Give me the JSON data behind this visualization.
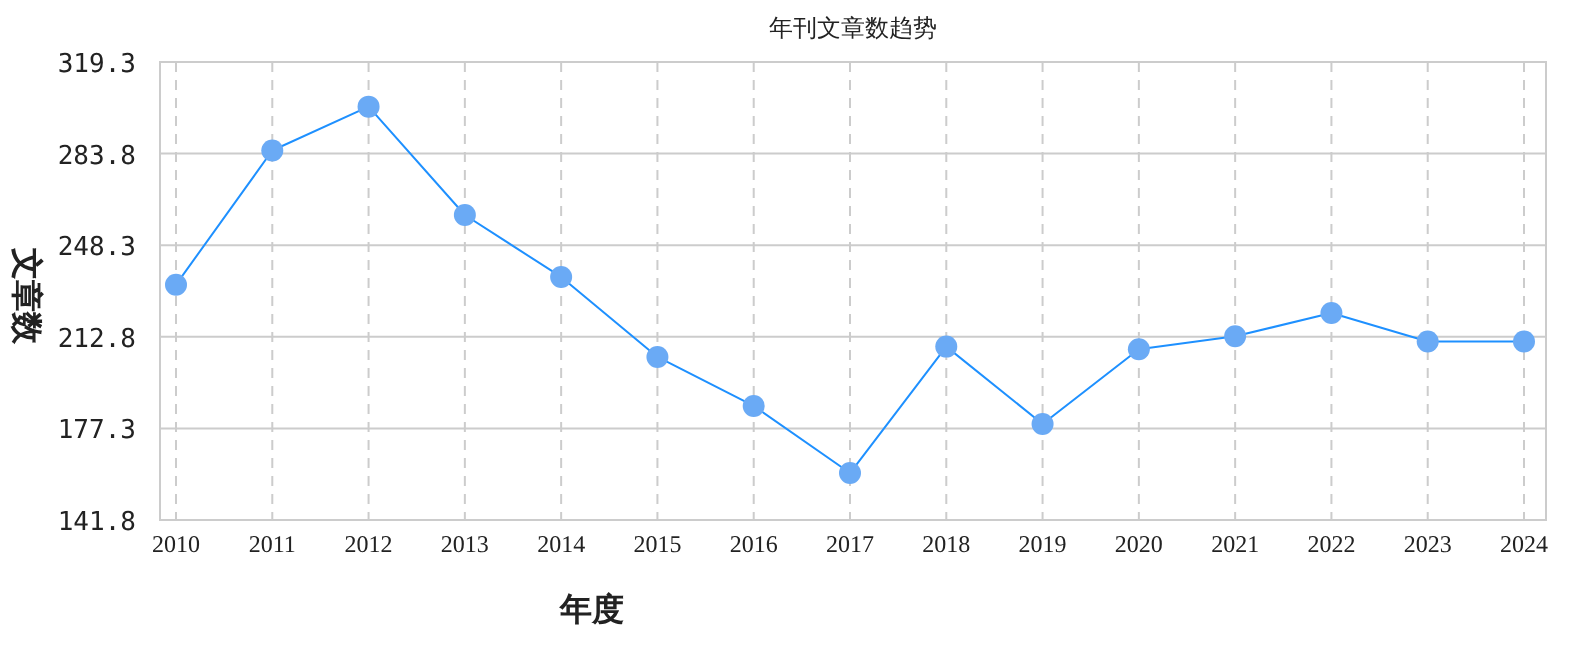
{
  "chart_data": {
    "type": "line",
    "title": "年刊文章数趋势",
    "xlabel": "年度",
    "ylabel": "文章数",
    "categories": [
      "2010",
      "2011",
      "2012",
      "2013",
      "2014",
      "2015",
      "2016",
      "2017",
      "2018",
      "2019",
      "2020",
      "2021",
      "2022",
      "2023",
      "2024"
    ],
    "series": [
      {
        "color": "#1e90ff",
        "values": [
          233,
          285,
          302,
          260,
          236,
          205,
          186,
          160,
          209,
          179,
          208,
          213,
          222,
          211,
          211
        ]
      }
    ],
    "marker": "circle",
    "line_style": "solid",
    "grid": true,
    "ylim": [
      141.8,
      319.3
    ],
    "yticks": [
      141.8,
      177.3,
      212.8,
      248.3,
      283.8,
      319.3
    ]
  }
}
